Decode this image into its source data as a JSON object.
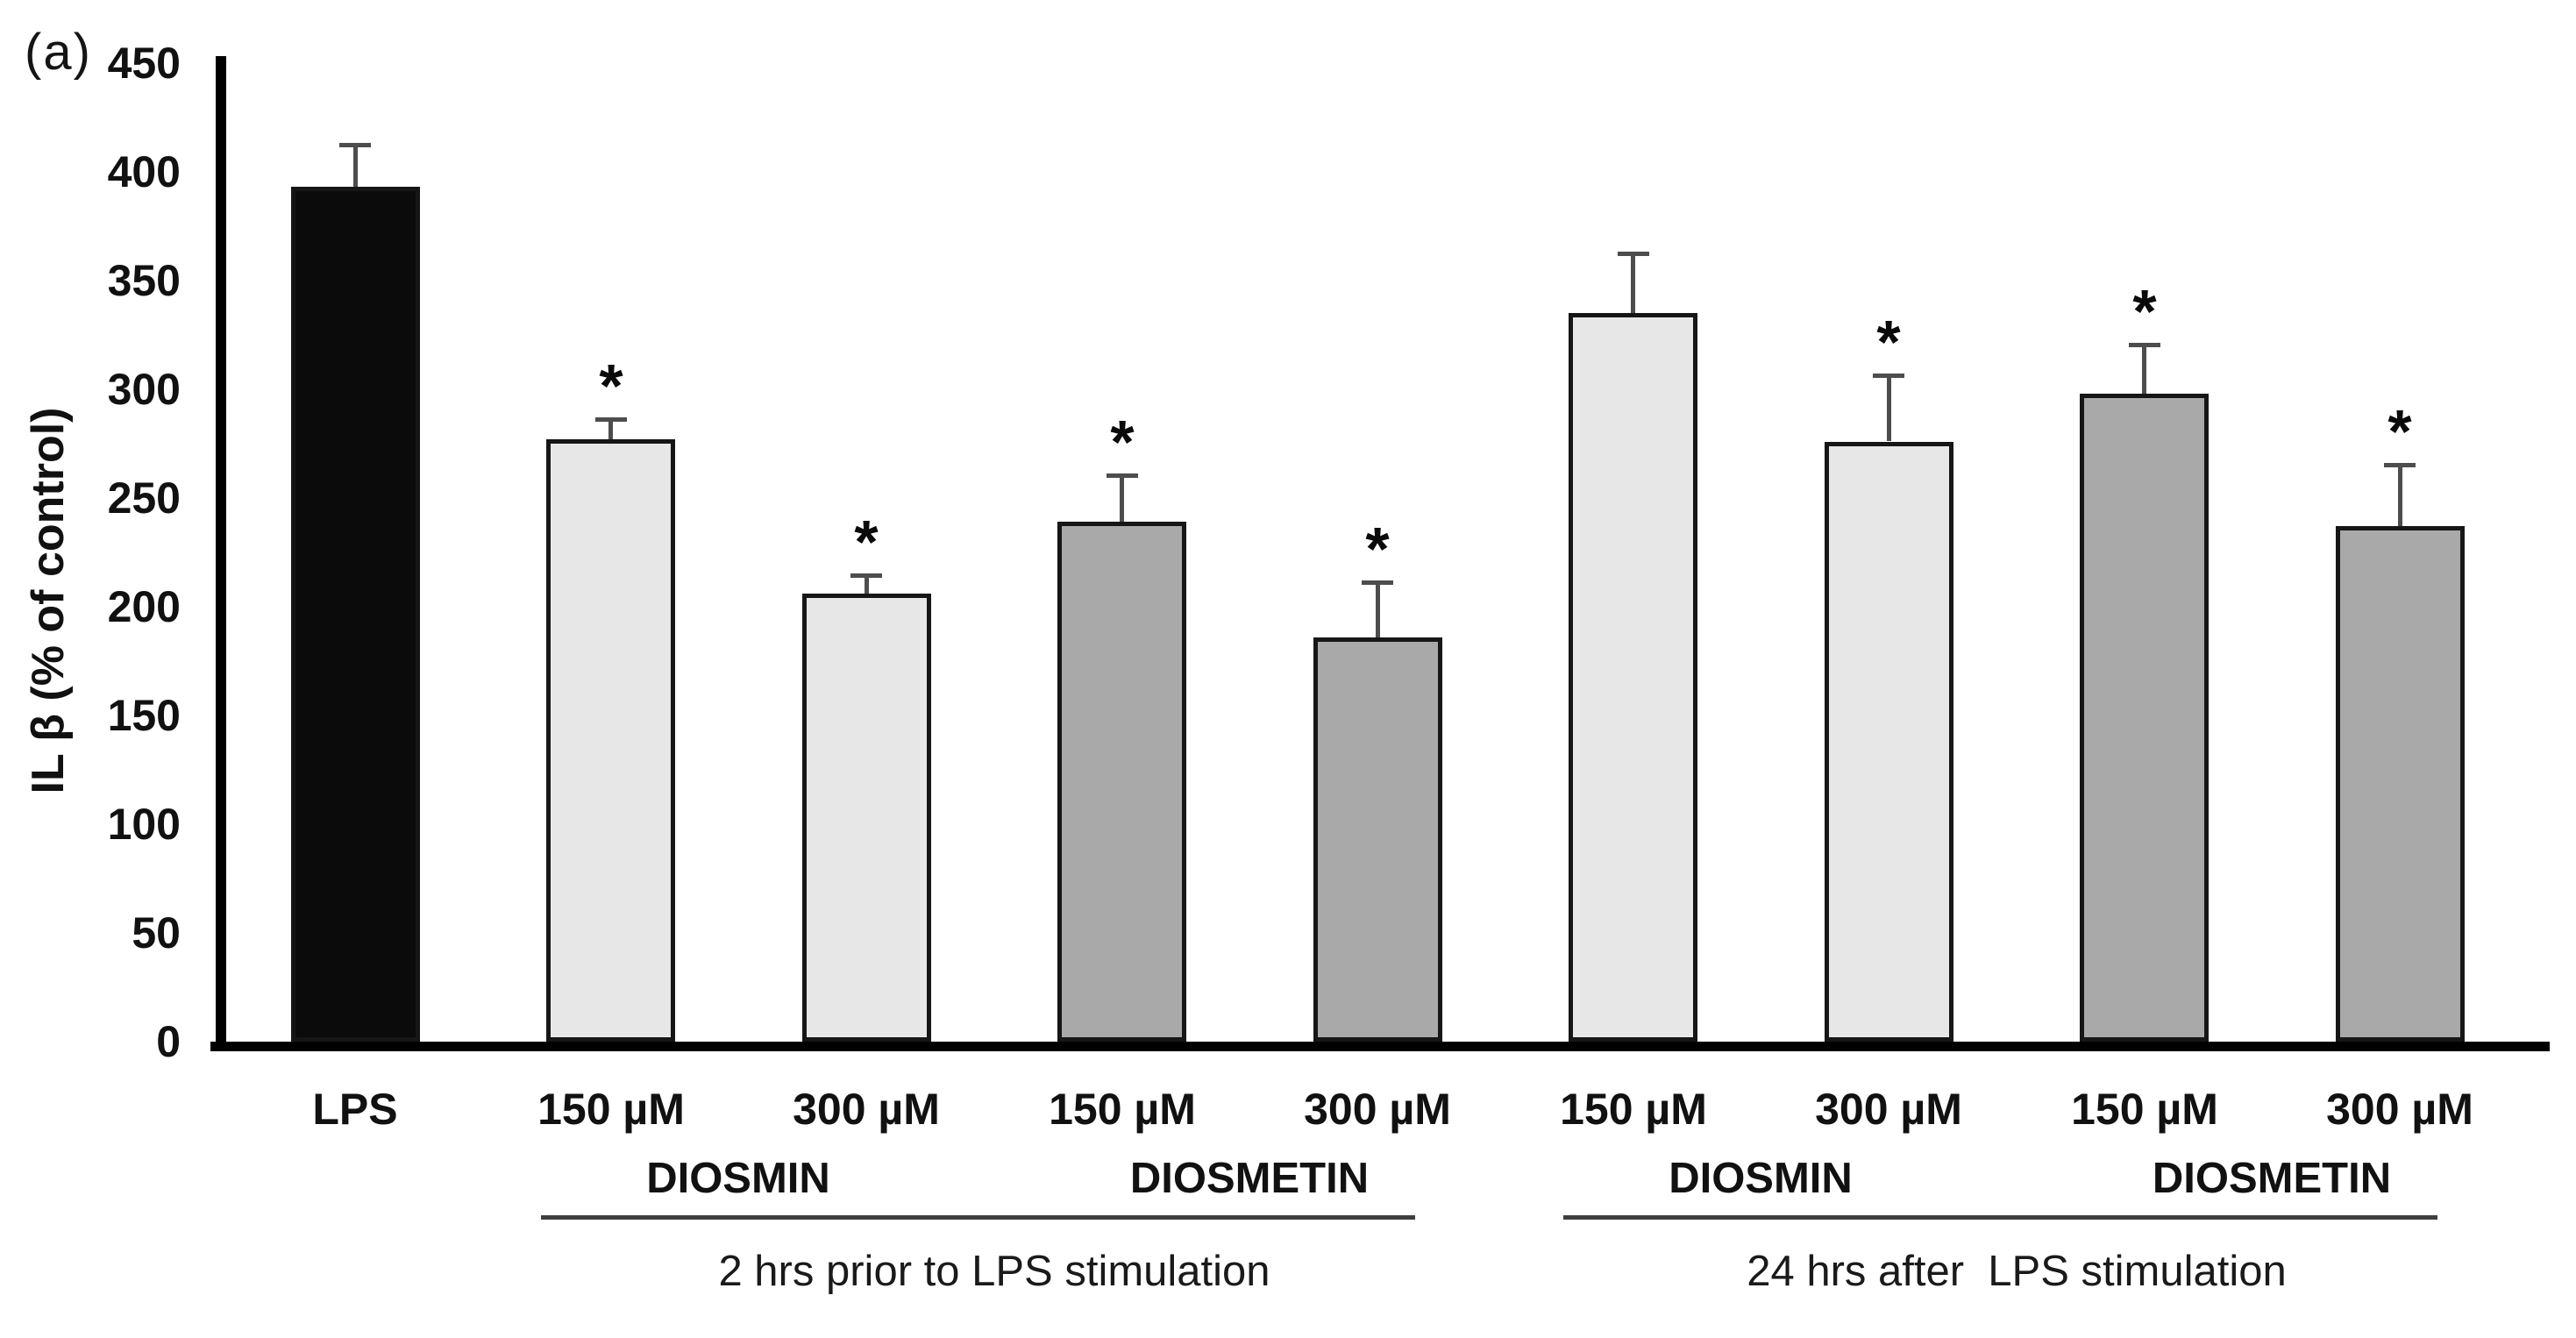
{
  "panel_label": "(a)",
  "chart_data": {
    "type": "bar",
    "title": "",
    "xlabel": "",
    "ylabel": "IL β (% of control)",
    "ylim": [
      0,
      450
    ],
    "ytick_step": 50,
    "yticks": [
      0,
      50,
      100,
      150,
      200,
      250,
      300,
      350,
      400,
      450
    ],
    "grid": false,
    "legend": false,
    "significance_marker": "*",
    "bars": [
      {
        "label": "LPS",
        "value": 393,
        "error": 19,
        "significant": false,
        "color_key": "black"
      },
      {
        "label": "150 µM",
        "value": 277,
        "error": 9,
        "significant": true,
        "color_key": "light_gray"
      },
      {
        "label": "300 µM",
        "value": 206,
        "error": 8,
        "significant": true,
        "color_key": "light_gray"
      },
      {
        "label": "150 µM",
        "value": 239,
        "error": 21,
        "significant": true,
        "color_key": "medium_gray"
      },
      {
        "label": "300 µM",
        "value": 186,
        "error": 25,
        "significant": true,
        "color_key": "medium_gray"
      },
      {
        "label": "150 µM",
        "value": 335,
        "error": 27,
        "significant": false,
        "color_key": "light_gray"
      },
      {
        "label": "300 µM",
        "value": 276,
        "error": 30,
        "significant": true,
        "color_key": "light_gray"
      },
      {
        "label": "150 µM",
        "value": 298,
        "error": 22,
        "significant": true,
        "color_key": "medium_gray"
      },
      {
        "label": "300 µM",
        "value": 237,
        "error": 28,
        "significant": true,
        "color_key": "medium_gray"
      }
    ],
    "group_labels": [
      {
        "text": "DIOSMIN",
        "from_bar": 1,
        "to_bar": 2
      },
      {
        "text": "DIOSMETIN",
        "from_bar": 3,
        "to_bar": 4
      },
      {
        "text": "DIOSMIN",
        "from_bar": 5,
        "to_bar": 6
      },
      {
        "text": "DIOSMETIN",
        "from_bar": 7,
        "to_bar": 8
      }
    ],
    "section_labels": [
      {
        "text": "2 hrs prior to LPS stimulation",
        "from_bar": 1,
        "to_bar": 4
      },
      {
        "text": "24 hrs after  LPS stimulation",
        "from_bar": 5,
        "to_bar": 8
      }
    ]
  },
  "colors": {
    "black": "#0b0b0b",
    "light_gray": "#e7e7e7",
    "medium_gray": "#a9a9a9",
    "bar_border": "#161616",
    "error_bar": "#4d4d4d",
    "underline": "#3f3f3f",
    "text": "#151515",
    "background": "#ffffff"
  }
}
